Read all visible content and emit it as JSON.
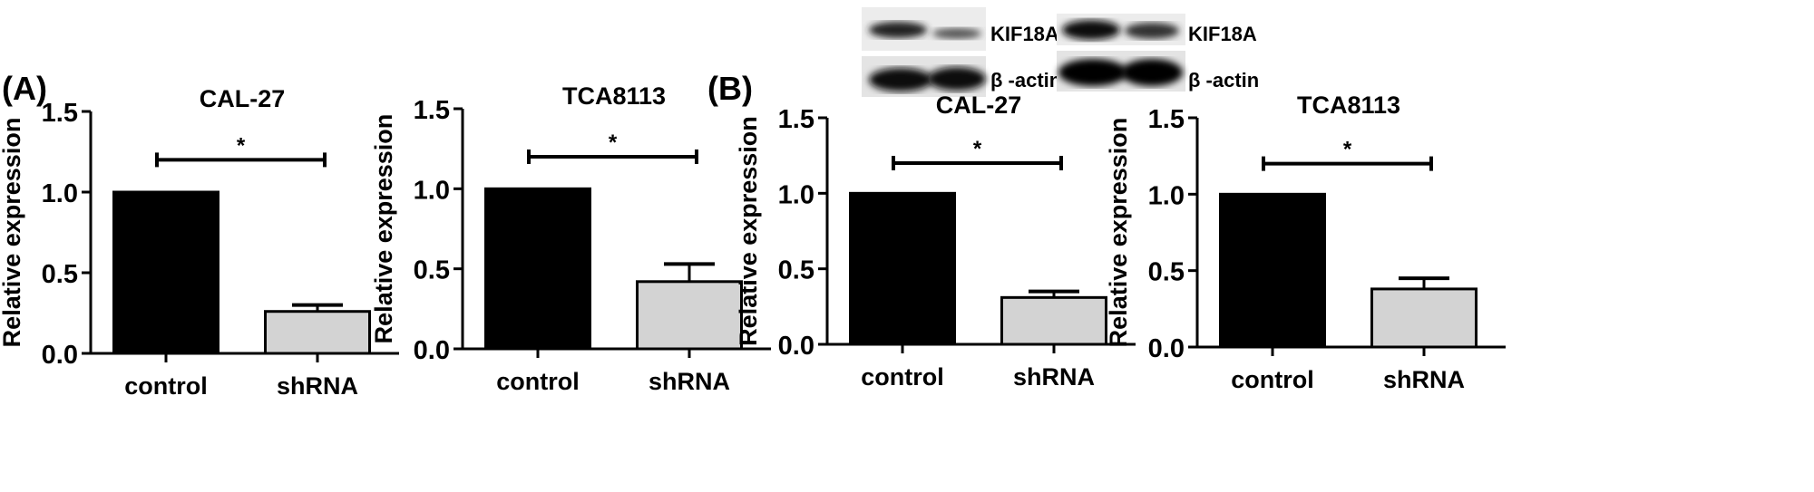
{
  "panel_labels": [
    "(A)",
    "(B)"
  ],
  "blots": [
    {
      "bands": [
        "KIF18A",
        "β -actin"
      ]
    },
    {
      "bands": [
        "KIF18A",
        "β -actin"
      ]
    }
  ],
  "colors": {
    "control": "#000000",
    "shRNA": "#d3d3d3"
  },
  "chart_data": [
    {
      "type": "bar",
      "panel": "(A)",
      "title": "CAL-27",
      "ylabel": "Relative expression",
      "ylim": [
        0,
        1.5
      ],
      "yticks": [
        "0.0",
        "0.5",
        "1.0",
        "1.5"
      ],
      "categories": [
        "control",
        "shRNA"
      ],
      "values": [
        1.0,
        0.26
      ],
      "errors": [
        0,
        0.04
      ],
      "significance": "*"
    },
    {
      "type": "bar",
      "panel": "(A)",
      "title": "TCA8113",
      "ylabel": "Relative expression",
      "ylim": [
        0,
        1.5
      ],
      "yticks": [
        "0.0",
        "0.5",
        "1.0",
        "1.5"
      ],
      "categories": [
        "control",
        "shRNA"
      ],
      "values": [
        1.0,
        0.42
      ],
      "errors": [
        0,
        0.11
      ],
      "significance": "*"
    },
    {
      "type": "bar",
      "panel": "(B)",
      "title": "CAL-27",
      "ylabel": "Relative expression",
      "ylim": [
        0,
        1.5
      ],
      "yticks": [
        "0.0",
        "0.5",
        "1.0",
        "1.5"
      ],
      "categories": [
        "control",
        "shRNA"
      ],
      "values": [
        1.0,
        0.31
      ],
      "errors": [
        0,
        0.04
      ],
      "significance": "*"
    },
    {
      "type": "bar",
      "panel": "(B)",
      "title": "TCA8113",
      "ylabel": "Relative expression",
      "ylim": [
        0,
        1.5
      ],
      "yticks": [
        "0.0",
        "0.5",
        "1.0",
        "1.5"
      ],
      "categories": [
        "control",
        "shRNA"
      ],
      "values": [
        1.0,
        0.38
      ],
      "errors": [
        0,
        0.07
      ],
      "significance": "*"
    }
  ]
}
